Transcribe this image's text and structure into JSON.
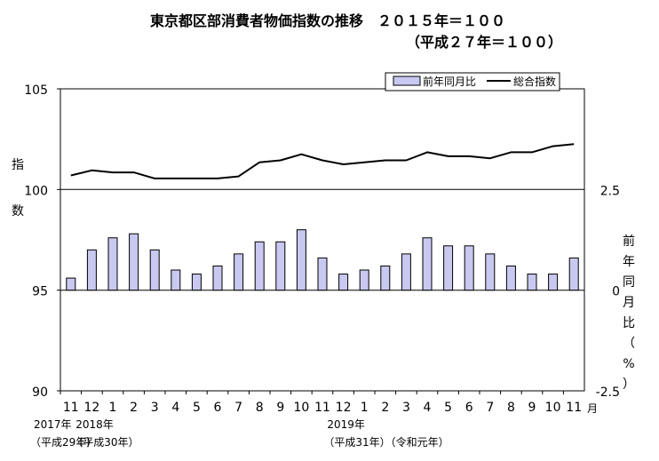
{
  "chart_data": {
    "type": "bar+line",
    "title": "東京都区部消費者物価指数の推移　２０１５年＝１００",
    "subtitle": "（平成２７年＝１００）",
    "legend": {
      "placement": "top-right",
      "bar_label": "前年同月比",
      "line_label": "総合指数"
    },
    "left_axis": {
      "label": "指数",
      "ylim": [
        90,
        105
      ],
      "ticks": [
        "90",
        "95",
        "100",
        "105"
      ]
    },
    "right_axis": {
      "label": "前年同月比（%）",
      "ylim": [
        -2.5,
        5.0
      ],
      "ticks": [
        "-2.5",
        "0",
        "2.5"
      ]
    },
    "x_unit": "月",
    "categories": [
      "11",
      "12",
      "1",
      "2",
      "3",
      "4",
      "5",
      "6",
      "7",
      "8",
      "9",
      "10",
      "11",
      "12",
      "1",
      "2",
      "3",
      "4",
      "5",
      "6",
      "7",
      "8",
      "9",
      "10",
      "11"
    ],
    "year_labels": [
      {
        "index": 0,
        "year": "2017年",
        "era": "（平成29年）"
      },
      {
        "index": 2,
        "year": "2018年",
        "era": "（平成30年）"
      },
      {
        "index": 14,
        "year": "2019年",
        "era": "（平成31年）（令和元年）"
      }
    ],
    "series": [
      {
        "name": "前年同月比",
        "type": "bar",
        "values": [
          0.3,
          1.0,
          1.3,
          1.4,
          1.0,
          0.5,
          0.4,
          0.6,
          0.9,
          1.2,
          1.2,
          1.5,
          0.8,
          0.4,
          0.5,
          0.6,
          0.9,
          1.3,
          1.1,
          1.1,
          0.9,
          0.6,
          0.4,
          0.4,
          0.8
        ]
      },
      {
        "name": "総合指数",
        "type": "line",
        "values": [
          100.7,
          100.95,
          100.85,
          100.85,
          100.55,
          100.55,
          100.55,
          100.55,
          100.65,
          101.35,
          101.45,
          101.75,
          101.45,
          101.25,
          101.35,
          101.45,
          101.45,
          101.85,
          101.65,
          101.65,
          101.55,
          101.85,
          101.85,
          102.15,
          102.25
        ]
      }
    ],
    "colors": {
      "bar_fill": "#c8c8f0",
      "bar_stroke": "#000000",
      "line": "#000000"
    }
  }
}
